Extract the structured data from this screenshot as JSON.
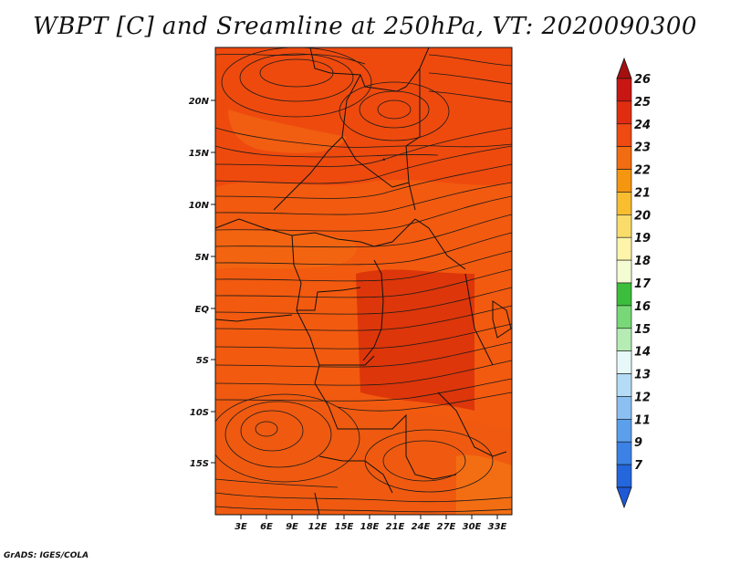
{
  "title": "WBPT [C] and Sreamline at 250hPa, VT: 2020090300",
  "credit": "GrADS: IGES/COLA",
  "colors": {
    "field_base": "#f25a0f",
    "field_high": "#e8400c",
    "field_dark": "#d83008",
    "field_light": "#f07010",
    "streamline": "#1a1a1a"
  },
  "axes": {
    "lat_labels": [
      "20N",
      "15N",
      "10N",
      "5N",
      "EQ",
      "5S",
      "10S",
      "15S"
    ],
    "lon_labels": [
      "3E",
      "6E",
      "9E",
      "12E",
      "15E",
      "18E",
      "21E",
      "24E",
      "27E",
      "30E",
      "33E"
    ]
  },
  "colorbar": {
    "labels": [
      "26",
      "25",
      "24",
      "23",
      "22",
      "21",
      "20",
      "19",
      "18",
      "17",
      "16",
      "15",
      "14",
      "13",
      "12",
      "11",
      "9",
      "7"
    ],
    "colors": [
      "#a50f0f",
      "#c81612",
      "#e02d10",
      "#ef4a12",
      "#f26c12",
      "#f4960f",
      "#f8be30",
      "#fadc6a",
      "#fef4aa",
      "#f4fcd4",
      "#3cbe3c",
      "#78d878",
      "#b4ecb4",
      "#e6f8f8",
      "#b4dcf6",
      "#8cc0f0",
      "#5ca0ec",
      "#3c82e6",
      "#2466dc",
      "#1e5ad8"
    ]
  }
}
